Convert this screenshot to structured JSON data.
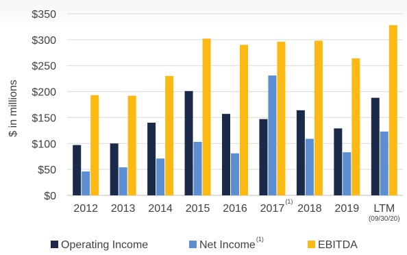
{
  "chart_data": {
    "type": "bar",
    "categories": [
      "2012",
      "2013",
      "2014",
      "2015",
      "2016",
      "2017",
      "2018",
      "2019",
      "LTM"
    ],
    "category_sublabels": [
      "",
      "",
      "",
      "",
      "",
      "",
      "",
      "",
      "(09/30/20)"
    ],
    "category_superscripts": [
      "",
      "",
      "",
      "",
      "",
      "(1)",
      "",
      "",
      ""
    ],
    "series": [
      {
        "name": "Operating Income",
        "color": "#1c2a4a",
        "values": [
          97,
          100,
          140,
          201,
          157,
          147,
          164,
          129,
          188
        ]
      },
      {
        "name": "Net Income",
        "superscript": "(1)",
        "color": "#5b8fd1",
        "values": [
          46,
          54,
          71,
          103,
          81,
          231,
          109,
          83,
          123
        ]
      },
      {
        "name": "EBITDA",
        "color": "#fcb813",
        "values": [
          193,
          192,
          230,
          302,
          290,
          296,
          298,
          264,
          328
        ]
      }
    ],
    "ylabel": "$ in millions",
    "ylim": [
      0,
      350
    ],
    "yticks": [
      0,
      50,
      100,
      150,
      200,
      250,
      300,
      350
    ],
    "ytick_labels": [
      "$0",
      "$50",
      "$100",
      "$150",
      "$200",
      "$250",
      "$300",
      "$350"
    ],
    "grid": true,
    "legend_position": "bottom"
  }
}
